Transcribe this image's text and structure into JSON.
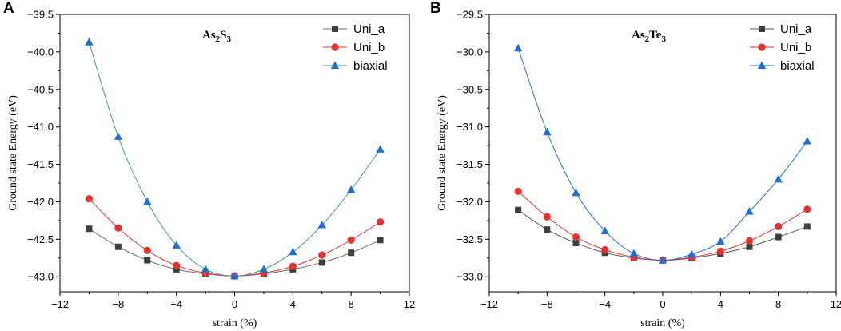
{
  "chart_data": [
    {
      "panel_label": "A",
      "type": "line",
      "title": "As2S3",
      "title_main": "As",
      "title_parts": [
        "2",
        "S",
        "3"
      ],
      "xlabel": "strain (%)",
      "ylabel": "Ground state Energy (eV)",
      "xlim": [
        -12,
        12
      ],
      "ylim": [
        -43.2,
        -39.5
      ],
      "xticks": [
        -12,
        -8,
        -4,
        0,
        4,
        8,
        12
      ],
      "xtick_labels": [
        "−12",
        "−8",
        "−4",
        "0",
        "4",
        "8",
        "12"
      ],
      "yticks": [
        -43.0,
        -42.5,
        -42.0,
        -41.5,
        -41.0,
        -40.5,
        -40.0,
        -39.5
      ],
      "ytick_labels": [
        "−43.0",
        "−42.5",
        "−42.0",
        "−41.5",
        "−41.0",
        "−40.5",
        "−40.0",
        "−39.5"
      ],
      "x": [
        -10,
        -8,
        -6,
        -4,
        -2,
        0,
        2,
        4,
        6,
        8,
        10
      ],
      "legend_position": "top-right",
      "series": [
        {
          "name": "Uni_a",
          "marker": "square",
          "color": "#3f3f3f",
          "line_color": "#6b6b6b",
          "values": [
            -42.36,
            -42.6,
            -42.78,
            -42.9,
            -42.96,
            -42.99,
            -42.96,
            -42.9,
            -42.81,
            -42.68,
            -42.51
          ]
        },
        {
          "name": "Uni_b",
          "marker": "circle",
          "color": "#e8312f",
          "line_color": "#e8312f",
          "values": [
            -41.96,
            -42.35,
            -42.65,
            -42.85,
            -42.95,
            -42.99,
            -42.95,
            -42.86,
            -42.71,
            -42.51,
            -42.27
          ]
        },
        {
          "name": "biaxial",
          "marker": "triangle",
          "color": "#1f6fd6",
          "line_color": "#3c9a8e",
          "values": [
            -39.87,
            -41.13,
            -42.0,
            -42.58,
            -42.9,
            -42.99,
            -42.9,
            -42.67,
            -42.31,
            -41.84,
            -41.3
          ]
        }
      ]
    },
    {
      "panel_label": "B",
      "type": "line",
      "title": "As2Te3",
      "title_main": "As",
      "title_parts": [
        "2",
        "Te",
        "3"
      ],
      "xlabel": "strain (%)",
      "ylabel": "Ground state Energy (eV)",
      "xlim": [
        -12,
        12
      ],
      "ylim": [
        -33.2,
        -29.5
      ],
      "xticks": [
        -12,
        -8,
        -4,
        0,
        4,
        8,
        12
      ],
      "xtick_labels": [
        "−12",
        "−8",
        "−4",
        "0",
        "4",
        "8",
        "12"
      ],
      "yticks": [
        -33.0,
        -32.5,
        -32.0,
        -31.5,
        -31.0,
        -30.5,
        -30.0,
        -29.5
      ],
      "ytick_labels": [
        "−33.0",
        "−32.5",
        "−32.0",
        "−31.5",
        "−31.0",
        "−30.5",
        "−30.0",
        "−29.5"
      ],
      "x": [
        -10,
        -8,
        -6,
        -4,
        -2,
        0,
        2,
        4,
        6,
        8,
        10
      ],
      "legend_position": "top-right",
      "series": [
        {
          "name": "Uni_a",
          "marker": "square",
          "color": "#3f3f3f",
          "line_color": "#555555",
          "values": [
            -32.11,
            -32.37,
            -32.55,
            -32.68,
            -32.75,
            -32.78,
            -32.75,
            -32.69,
            -32.6,
            -32.47,
            -32.33
          ]
        },
        {
          "name": "Uni_b",
          "marker": "circle",
          "color": "#e8312f",
          "line_color": "#e8312f",
          "values": [
            -31.86,
            -32.2,
            -32.47,
            -32.64,
            -32.74,
            -32.78,
            -32.74,
            -32.66,
            -32.52,
            -32.33,
            -32.1
          ]
        },
        {
          "name": "biaxial",
          "marker": "triangle",
          "color": "#1f6fd6",
          "line_color": "#1f6fd6",
          "values": [
            -29.95,
            -31.07,
            -31.88,
            -32.39,
            -32.69,
            -32.78,
            -32.7,
            -32.53,
            -32.13,
            -31.7,
            -31.19
          ]
        }
      ]
    }
  ]
}
